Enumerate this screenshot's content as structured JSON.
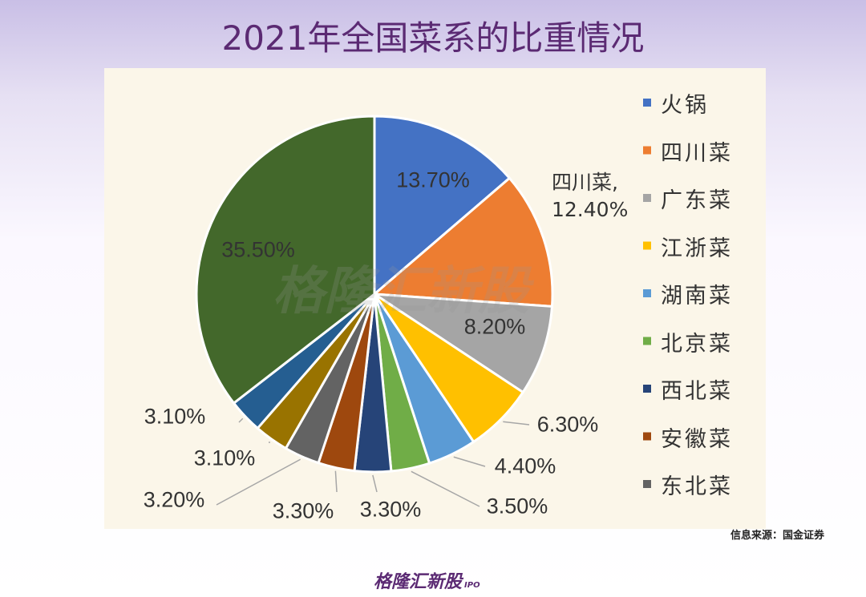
{
  "chart_data": {
    "type": "pie",
    "title": "2021年全国菜系的比重情况",
    "categories": [
      "火锅",
      "四川菜",
      "广东菜",
      "江浙菜",
      "湖南菜",
      "北京菜",
      "西北菜",
      "安徽菜",
      "东北菜",
      null,
      null,
      null
    ],
    "values": [
      13.7,
      12.4,
      8.2,
      6.3,
      4.4,
      3.5,
      3.3,
      3.3,
      3.2,
      3.1,
      3.1,
      35.5
    ],
    "value_labels": [
      "13.70%",
      "四川菜, 12.40%",
      "8.20%",
      "6.30%",
      "4.40%",
      "3.50%",
      "3.30%",
      "3.30%",
      "3.20%",
      "3.10%",
      "3.10%",
      "35.50%"
    ],
    "colors": [
      "#4472c4",
      "#ed7d31",
      "#a5a5a5",
      "#ffc000",
      "#5b9bd5",
      "#70ad47",
      "#264478",
      "#9e480e",
      "#636363",
      "#997300",
      "#255e91",
      "#43682b"
    ],
    "legend": "right",
    "source": "信息来源：国金证券"
  },
  "watermark": "格隆汇新股",
  "footer": {
    "logo": "格隆汇新股",
    "tag": "IPO"
  }
}
